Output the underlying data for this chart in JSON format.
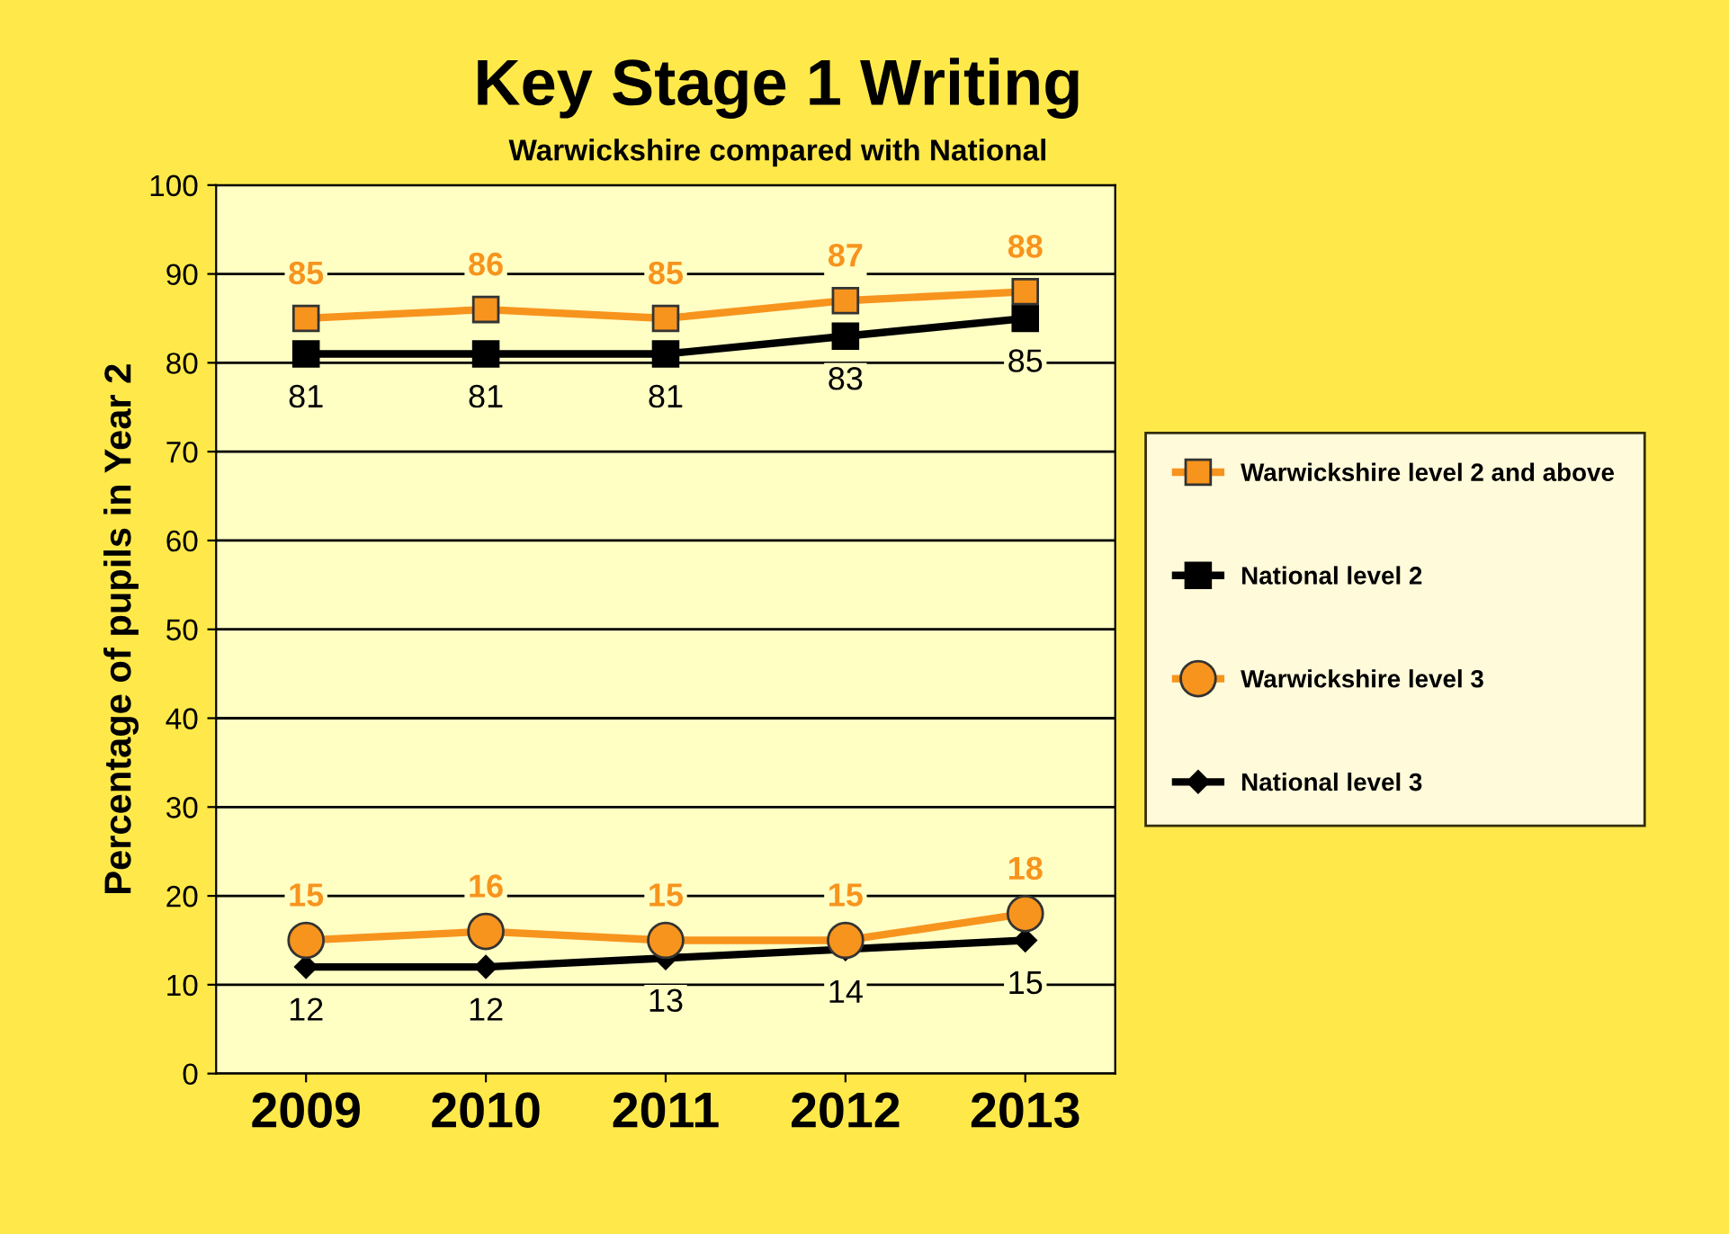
{
  "chart_data": {
    "type": "line",
    "title": "Key Stage 1 Writing",
    "subtitle": "Warwickshire compared with National",
    "ylabel": "Percentage of pupils in Year 2",
    "categories": [
      "2009",
      "2010",
      "2011",
      "2012",
      "2013"
    ],
    "series": [
      {
        "name": "Warwickshire level 2 and above",
        "color": "#f7941d",
        "marker": "square",
        "values": [
          85,
          86,
          85,
          87,
          88
        ]
      },
      {
        "name": "National level 2",
        "color": "#000000",
        "marker": "square",
        "values": [
          81,
          81,
          81,
          83,
          85
        ]
      },
      {
        "name": "Warwickshire level 3",
        "color": "#f7941d",
        "marker": "circle",
        "values": [
          15,
          16,
          15,
          15,
          18
        ]
      },
      {
        "name": "National level 3",
        "color": "#000000",
        "marker": "diamond",
        "values": [
          12,
          12,
          13,
          14,
          15
        ]
      }
    ],
    "ylim": [
      0,
      100
    ],
    "yticks": [
      0,
      10,
      20,
      30,
      40,
      50,
      60,
      70,
      80,
      90,
      100
    ],
    "grid": "y",
    "legend": "right",
    "data_labels": true,
    "line_style": "solid"
  }
}
